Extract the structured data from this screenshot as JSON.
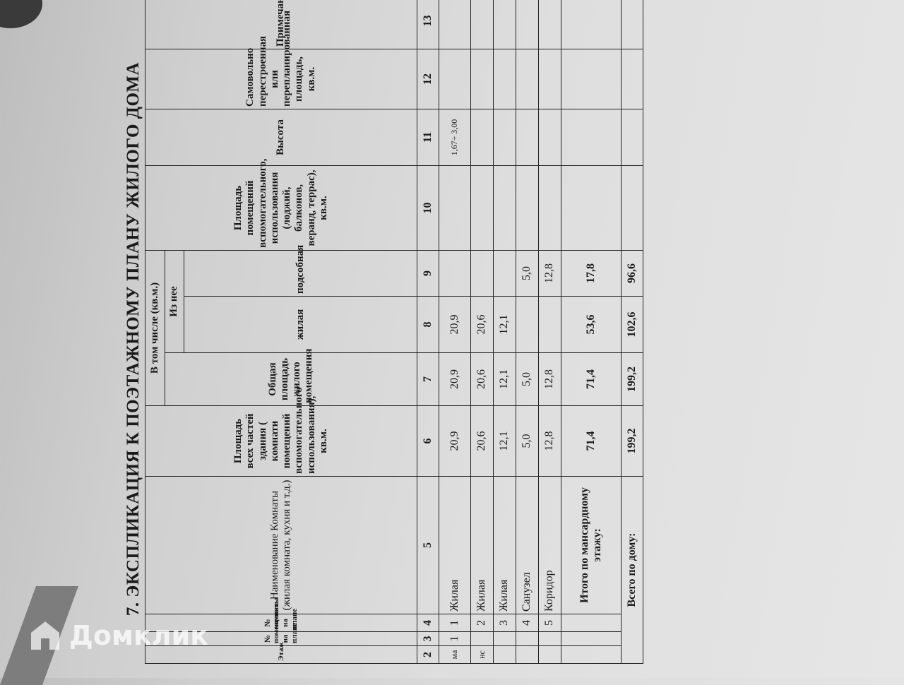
{
  "title": "7. ЭКСПЛИКАЦИЯ К ПОЭТАЖНОМУ ПЛАНУ ЖИЛОГО ДОМА",
  "headers": {
    "floor": "Этаж",
    "premise_no": "№ помещения на плане",
    "room_no": "№ комнаты на плане",
    "room_name": "Наименование Комнаты (жилая комната, кухня и т.д.)",
    "total_area": "Площадь всех частей здания ( комнати помещений вспомогательного использования), кв.м.",
    "including": "В том числе (кв.м.)",
    "living_total": "Общая площадь жилого помещения",
    "of_which": "Из нее",
    "living": "жилая",
    "utility": "подсобная",
    "aux_area": "Площадь помещений вспомогательного, использования (лоджий, балконов, веранд, террас), кв.м.",
    "height": "Высота",
    "unauthorized": "Самовольно перестроенная или перепланированная площадь, кв.м.",
    "note": "Примечание"
  },
  "column_numbers": [
    "2",
    "3",
    "4",
    "5",
    "6",
    "7",
    "8",
    "9",
    "10",
    "11",
    "12",
    "13"
  ],
  "rows": [
    {
      "floor": "ма",
      "premise": "1",
      "room": "1",
      "name": "Жилая",
      "total": "20,9",
      "living_total": "20,9",
      "living": "20,9",
      "utility": "",
      "aux": "",
      "height": "1,67÷ 3,00",
      "unauth": "",
      "note": ""
    },
    {
      "floor": "нс",
      "premise": "",
      "room": "2",
      "name": "Жилая",
      "total": "20,6",
      "living_total": "20,6",
      "living": "20,6",
      "utility": "",
      "aux": "",
      "height": "",
      "unauth": "",
      "note": ""
    },
    {
      "floor": "",
      "premise": "",
      "room": "3",
      "name": "Жилая",
      "total": "12,1",
      "living_total": "12,1",
      "living": "12,1",
      "utility": "",
      "aux": "",
      "height": "",
      "unauth": "",
      "note": ""
    },
    {
      "floor": "",
      "premise": "",
      "room": "4",
      "name": "Санузел",
      "total": "5,0",
      "living_total": "5,0",
      "living": "",
      "utility": "5,0",
      "aux": "",
      "height": "",
      "unauth": "",
      "note": ""
    },
    {
      "floor": "",
      "premise": "",
      "room": "5",
      "name": "Коридор",
      "total": "12,8",
      "living_total": "12,8",
      "living": "",
      "utility": "12,8",
      "aux": "",
      "height": "",
      "unauth": "",
      "note": ""
    }
  ],
  "floor_total": {
    "label": "Итого по мансардному этажу:",
    "total": "71,4",
    "living_total": "71,4",
    "living": "53,6",
    "utility": "17,8"
  },
  "house_total": {
    "label": "Всего по дому:",
    "total": "199,2",
    "living_total": "199,2",
    "living": "102,6",
    "utility": "96,6"
  },
  "watermark": "Домклик"
}
